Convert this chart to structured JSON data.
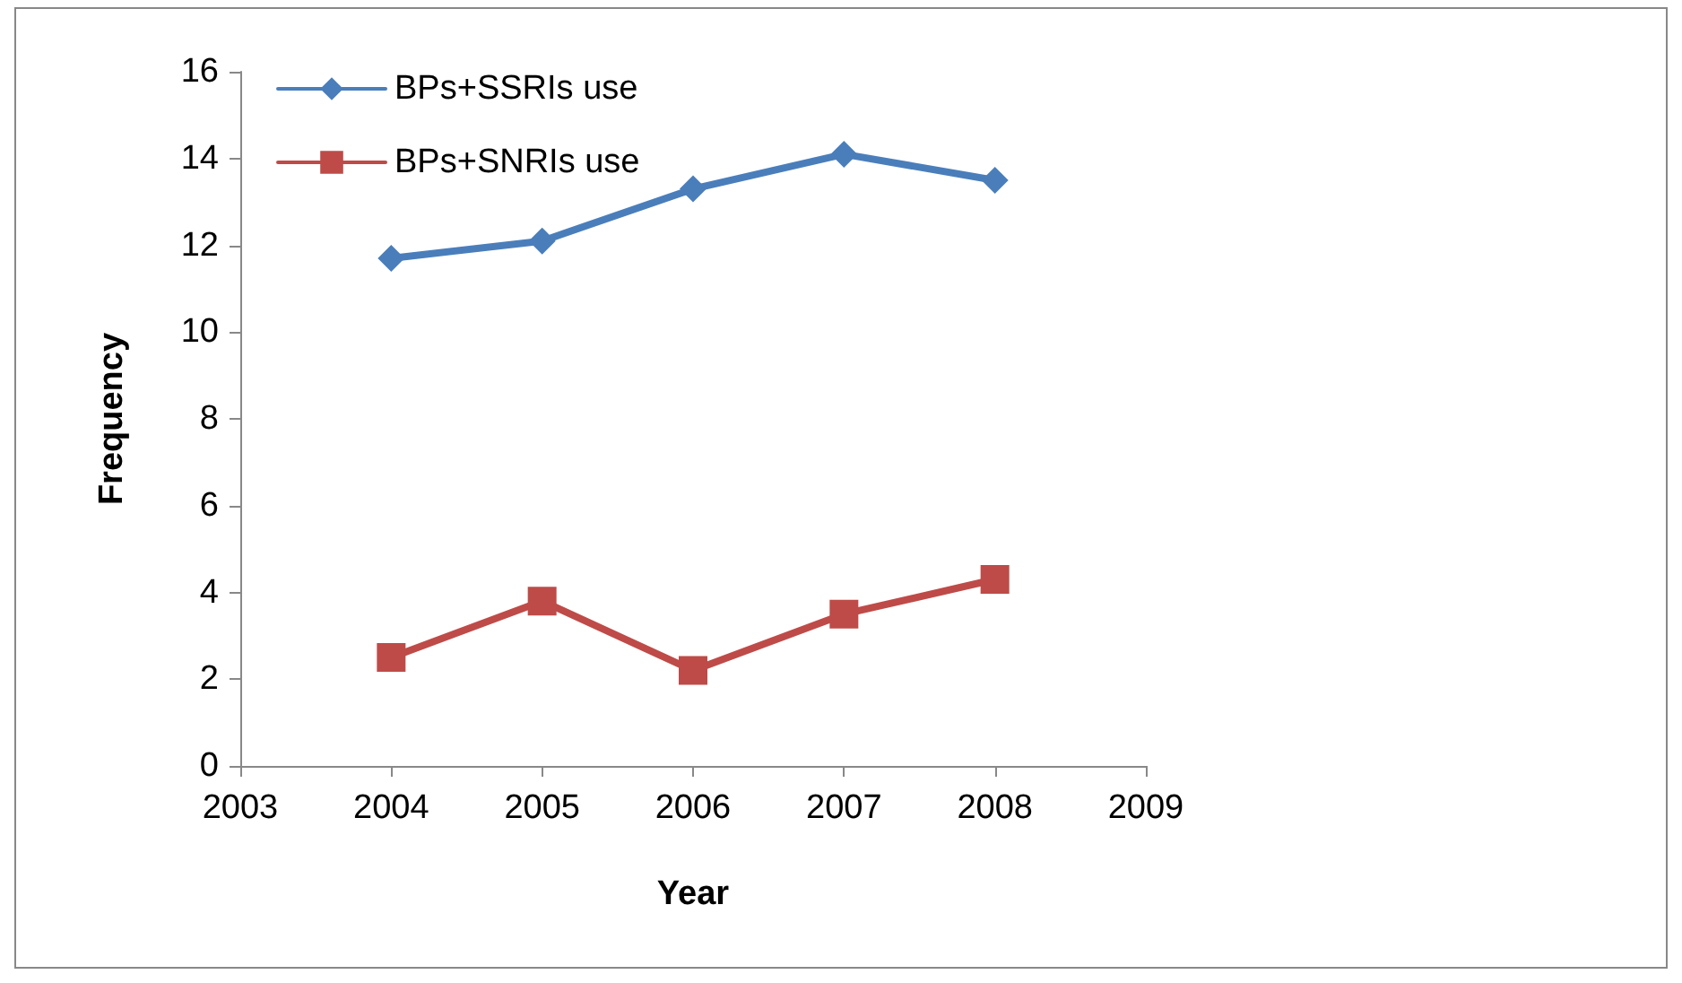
{
  "chart_data": {
    "type": "line",
    "xlabel": "Year",
    "ylabel": "Frequency",
    "x": [
      2004,
      2005,
      2006,
      2007,
      2008
    ],
    "series": [
      {
        "name": "BPs+SSRIs use",
        "color": "#4a7ebb",
        "marker": "diamond",
        "values": [
          11.7,
          12.1,
          13.3,
          14.1,
          13.5
        ]
      },
      {
        "name": "BPs+SNRIs use",
        "color": "#be4b48",
        "marker": "square",
        "values": [
          2.5,
          3.8,
          2.2,
          3.5,
          4.3
        ]
      }
    ],
    "xlim": [
      2003,
      2009
    ],
    "xticks": [
      2003,
      2004,
      2005,
      2006,
      2007,
      2008,
      2009
    ],
    "ylim": [
      0,
      16
    ],
    "yticks": [
      0,
      2,
      4,
      6,
      8,
      10,
      12,
      14,
      16
    ],
    "grid": false,
    "legend": "top left",
    "line_style": "solid"
  }
}
